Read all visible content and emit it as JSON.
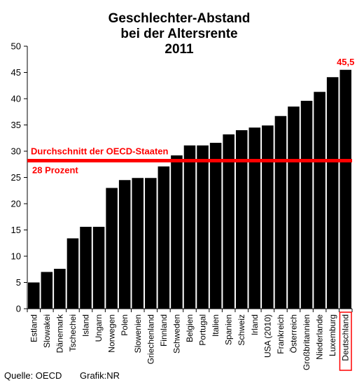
{
  "chart_data": {
    "type": "bar",
    "title_lines": [
      "Geschlechter-Abstand",
      "bei der Altersrente",
      "2011"
    ],
    "categories": [
      "Estland",
      "Slowakei",
      "Dänemark",
      "Tschechei",
      "Island",
      "Ungarn",
      "Norwegen",
      "Polen",
      "Slowenien",
      "Griechenland",
      "Finnland",
      "Schweden",
      "Belgien",
      "Portugal",
      "Italien",
      "Spanien",
      "Schweiz",
      "Irland",
      "USA (2010)",
      "Frankreich",
      "Österreich",
      "Großbritannien",
      "Niederlande",
      "Luxemburg",
      "Deutschland"
    ],
    "values": [
      5.0,
      7.0,
      7.6,
      13.4,
      15.6,
      15.6,
      23.0,
      24.5,
      24.9,
      24.9,
      27.1,
      29.2,
      31.1,
      31.1,
      31.6,
      33.2,
      34.0,
      34.5,
      34.9,
      36.7,
      38.5,
      39.6,
      41.3,
      44.1,
      45.5
    ],
    "ylim": [
      0,
      50
    ],
    "yticks": [
      0,
      5,
      10,
      15,
      20,
      25,
      30,
      35,
      40,
      45,
      50
    ],
    "grid": false,
    "bar_color": "#000000",
    "highlight": {
      "category": "Deutschland",
      "label": "45,5",
      "color": "#ff0000"
    },
    "reference_line": {
      "value": 28.2,
      "label": "Durchschnitt der OECD-Staaten",
      "sublabel": "28 Prozent",
      "color": "#ff0000"
    }
  },
  "footer": {
    "source": "Quelle: OECD",
    "credit": "Grafik:NR"
  }
}
